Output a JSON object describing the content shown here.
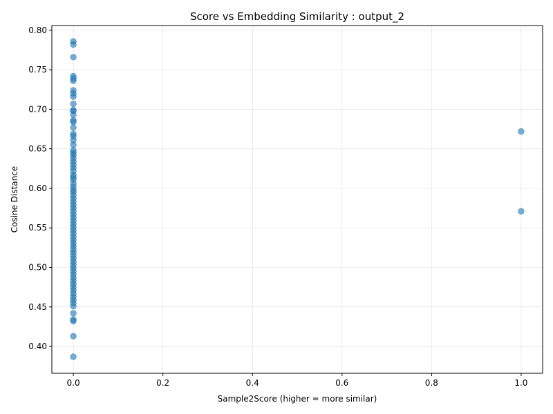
{
  "chart_data": {
    "type": "scatter",
    "title": "Score vs Embedding Similarity : output_2",
    "xlabel": "Sample2Score (higher = more similar)",
    "ylabel": "Cosine Distance",
    "xlim": [
      -0.048,
      1.048
    ],
    "ylim": [
      0.366,
      0.806
    ],
    "xticks": [
      0.0,
      0.2,
      0.4,
      0.6,
      0.8,
      1.0
    ],
    "xtick_labels": [
      "0.0",
      "0.2",
      "0.4",
      "0.6",
      "0.8",
      "1.0"
    ],
    "yticks": [
      0.4,
      0.45,
      0.5,
      0.55,
      0.6,
      0.65,
      0.7,
      0.75,
      0.8
    ],
    "ytick_labels": [
      "0.40",
      "0.45",
      "0.50",
      "0.55",
      "0.60",
      "0.65",
      "0.70",
      "0.75",
      "0.80"
    ],
    "grid": true,
    "point_color": "#1f77b4",
    "point_alpha": 0.6,
    "points": [
      {
        "x": 0,
        "y": 0.786
      },
      {
        "x": 0,
        "y": 0.782
      },
      {
        "x": 0,
        "y": 0.766
      },
      {
        "x": 0,
        "y": 0.742
      },
      {
        "x": 0,
        "y": 0.739
      },
      {
        "x": 0,
        "y": 0.736
      },
      {
        "x": 0,
        "y": 0.724
      },
      {
        "x": 0,
        "y": 0.72
      },
      {
        "x": 0,
        "y": 0.716
      },
      {
        "x": 0,
        "y": 0.707
      },
      {
        "x": 0,
        "y": 0.699
      },
      {
        "x": 0,
        "y": 0.698
      },
      {
        "x": 0,
        "y": 0.693
      },
      {
        "x": 0,
        "y": 0.686
      },
      {
        "x": 0,
        "y": 0.684
      },
      {
        "x": 0,
        "y": 0.677
      },
      {
        "x": 0,
        "y": 0.669
      },
      {
        "x": 0,
        "y": 0.666
      },
      {
        "x": 0,
        "y": 0.661
      },
      {
        "x": 0,
        "y": 0.655
      },
      {
        "x": 0,
        "y": 0.648
      },
      {
        "x": 0,
        "y": 0.645
      },
      {
        "x": 0,
        "y": 0.642
      },
      {
        "x": 0,
        "y": 0.638
      },
      {
        "x": 0,
        "y": 0.634
      },
      {
        "x": 0,
        "y": 0.63
      },
      {
        "x": 0,
        "y": 0.626
      },
      {
        "x": 0,
        "y": 0.622
      },
      {
        "x": 0,
        "y": 0.617
      },
      {
        "x": 0,
        "y": 0.614
      },
      {
        "x": 0,
        "y": 0.611
      },
      {
        "x": 0,
        "y": 0.606
      },
      {
        "x": 0,
        "y": 0.602
      },
      {
        "x": 0,
        "y": 0.598
      },
      {
        "x": 0,
        "y": 0.595
      },
      {
        "x": 0,
        "y": 0.591
      },
      {
        "x": 0,
        "y": 0.587
      },
      {
        "x": 0,
        "y": 0.583
      },
      {
        "x": 0,
        "y": 0.579
      },
      {
        "x": 0,
        "y": 0.575
      },
      {
        "x": 0,
        "y": 0.571
      },
      {
        "x": 0,
        "y": 0.567
      },
      {
        "x": 0,
        "y": 0.563
      },
      {
        "x": 0,
        "y": 0.559
      },
      {
        "x": 0,
        "y": 0.555
      },
      {
        "x": 0,
        "y": 0.551
      },
      {
        "x": 0,
        "y": 0.547
      },
      {
        "x": 0,
        "y": 0.543
      },
      {
        "x": 0,
        "y": 0.539
      },
      {
        "x": 0,
        "y": 0.535
      },
      {
        "x": 0,
        "y": 0.531
      },
      {
        "x": 0,
        "y": 0.527
      },
      {
        "x": 0,
        "y": 0.523
      },
      {
        "x": 0,
        "y": 0.519
      },
      {
        "x": 0,
        "y": 0.515
      },
      {
        "x": 0,
        "y": 0.511
      },
      {
        "x": 0,
        "y": 0.507
      },
      {
        "x": 0,
        "y": 0.503
      },
      {
        "x": 0,
        "y": 0.499
      },
      {
        "x": 0,
        "y": 0.495
      },
      {
        "x": 0,
        "y": 0.491
      },
      {
        "x": 0,
        "y": 0.487
      },
      {
        "x": 0,
        "y": 0.483
      },
      {
        "x": 0,
        "y": 0.479
      },
      {
        "x": 0,
        "y": 0.475
      },
      {
        "x": 0,
        "y": 0.471
      },
      {
        "x": 0,
        "y": 0.467
      },
      {
        "x": 0,
        "y": 0.463
      },
      {
        "x": 0,
        "y": 0.459
      },
      {
        "x": 0,
        "y": 0.455
      },
      {
        "x": 0,
        "y": 0.451
      },
      {
        "x": 0,
        "y": 0.442
      },
      {
        "x": 0,
        "y": 0.434
      },
      {
        "x": 0,
        "y": 0.432
      },
      {
        "x": 0,
        "y": 0.413
      },
      {
        "x": 0,
        "y": 0.387
      },
      {
        "x": 1,
        "y": 0.672
      },
      {
        "x": 1,
        "y": 0.571
      }
    ]
  }
}
